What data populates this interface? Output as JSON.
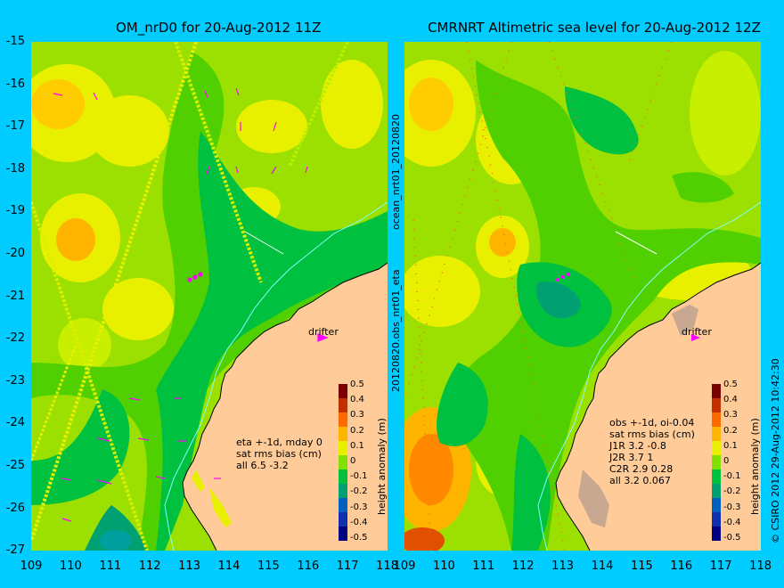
{
  "titles": {
    "left": "OM_nrD0 for 20-Aug-2012 11Z",
    "right": "CMRNRT Altimetric sea level  for 20-Aug-2012 12Z"
  },
  "axes": {
    "lat_ticks": [
      "-15",
      "-16",
      "-17",
      "-18",
      "-19",
      "-20",
      "-21",
      "-22",
      "-23",
      "-24",
      "-25",
      "-26",
      "-27"
    ],
    "lon_ticks": [
      "109",
      "110",
      "111",
      "112",
      "113",
      "114",
      "115",
      "116",
      "117",
      "118"
    ]
  },
  "drifter_label": "drifter",
  "left_stats": [
    "eta +-1d, mday 0",
    "sat rms bias (cm)",
    "all 6.5 -3.2"
  ],
  "right_stats": [
    "obs +-1d, oi-0.04",
    "sat rms bias (cm)",
    "J1R   3.2 -0.8",
    "J2R   3.7 1",
    "C2R   2.9 0.28",
    "all 3.2 0.067"
  ],
  "colorbar": {
    "ticks": [
      "0.5",
      "0.4",
      "0.3",
      "0.2",
      "0.1",
      "0",
      "-0.1",
      "-0.2",
      "-0.3",
      "-0.4",
      "-0.5"
    ],
    "label": "height anomaly (m)",
    "colors": [
      "#7a0000",
      "#c23000",
      "#ff6a00",
      "#ffb400",
      "#e8f000",
      "#80e000",
      "#00c040",
      "#00a070",
      "#0060c0",
      "#1030b0",
      "#000080"
    ]
  },
  "side_labels": {
    "upper": "ocean_nrt01_20120820",
    "lower": "20120820.obs_nrt01_eta",
    "credit": "© CSIRO 2012   29-Aug-2012 10:42:30"
  },
  "colors": {
    "background": "#00ccff",
    "land": "#ffcc99",
    "drifter": "#ff00ff"
  }
}
